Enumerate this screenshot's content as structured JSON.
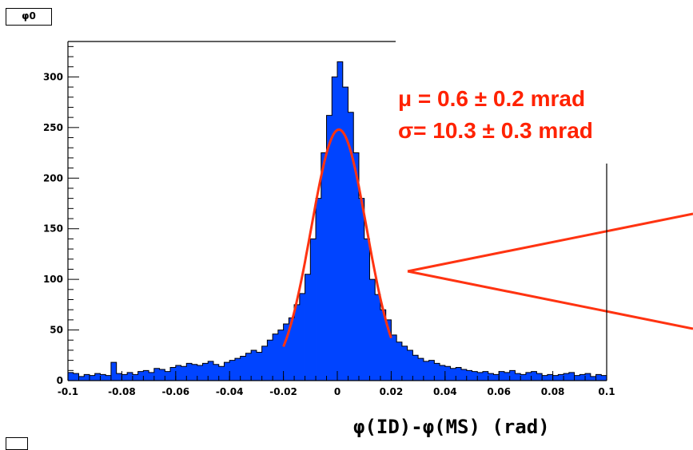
{
  "histogram_title": "φ0",
  "fit": {
    "mean_text": "μ = 0.6 ± 0.2 mrad",
    "sigma_text": "σ= 10.3 ± 0.3 mrad",
    "mean_mrad": 0.6,
    "sigma_mrad": 10.3,
    "amplitude": 248,
    "range": [
      -0.02,
      0.02
    ]
  },
  "colors": {
    "fill": "#0044ff",
    "fit_curve": "#ff3311",
    "fit_text": "#ff2200",
    "zoom_lines": "#ff3311"
  },
  "chart_data": {
    "type": "bar",
    "title": "φ0",
    "xlabel": "φ(ID)-φ(MS) (rad)",
    "ylabel": "",
    "xlim": [
      -0.1,
      0.1
    ],
    "ylim": [
      0,
      335
    ],
    "x_ticks": [
      "-0.1",
      "-0.08",
      "-0.06",
      "-0.04",
      "-0.02",
      "0",
      "0.02",
      "0.04",
      "0.06",
      "0.08",
      "0.1"
    ],
    "y_ticks": [
      "0",
      "50",
      "100",
      "150",
      "200",
      "250",
      "300"
    ],
    "bin_width": 0.002,
    "bin_lows": [
      -0.1,
      -0.098,
      -0.096,
      -0.094,
      -0.092,
      -0.09,
      -0.088,
      -0.086,
      -0.084,
      -0.082,
      -0.08,
      -0.078,
      -0.076,
      -0.074,
      -0.072,
      -0.07,
      -0.068,
      -0.066,
      -0.064,
      -0.062,
      -0.06,
      -0.058,
      -0.056,
      -0.054,
      -0.052,
      -0.05,
      -0.048,
      -0.046,
      -0.044,
      -0.042,
      -0.04,
      -0.038,
      -0.036,
      -0.034,
      -0.032,
      -0.03,
      -0.028,
      -0.026,
      -0.024,
      -0.022,
      -0.02,
      -0.018,
      -0.016,
      -0.014,
      -0.012,
      -0.01,
      -0.008,
      -0.006,
      -0.004,
      -0.002,
      0,
      0.002,
      0.004,
      0.006,
      0.008,
      0.01,
      0.012,
      0.014,
      0.016,
      0.018,
      0.02,
      0.022,
      0.024,
      0.026,
      0.028,
      0.03,
      0.032,
      0.034,
      0.036,
      0.038,
      0.04,
      0.042,
      0.044,
      0.046,
      0.048,
      0.05,
      0.052,
      0.054,
      0.056,
      0.058,
      0.06,
      0.062,
      0.064,
      0.066,
      0.068,
      0.07,
      0.072,
      0.074,
      0.076,
      0.078,
      0.08,
      0.082,
      0.084,
      0.086,
      0.088,
      0.09,
      0.092,
      0.094,
      0.096,
      0.098
    ],
    "values": [
      8,
      7,
      4,
      6,
      5,
      7,
      6,
      5,
      18,
      7,
      6,
      8,
      6,
      9,
      10,
      8,
      12,
      11,
      9,
      13,
      15,
      14,
      17,
      16,
      15,
      17,
      19,
      16,
      14,
      18,
      20,
      22,
      24,
      27,
      30,
      28,
      34,
      40,
      46,
      50,
      56,
      62,
      75,
      86,
      105,
      140,
      180,
      225,
      262,
      300,
      315,
      290,
      265,
      225,
      180,
      140,
      100,
      85,
      70,
      60,
      45,
      38,
      34,
      30,
      25,
      22,
      19,
      20,
      17,
      15,
      14,
      12,
      13,
      11,
      10,
      9,
      8,
      9,
      7,
      6,
      9,
      8,
      10,
      7,
      6,
      8,
      9,
      7,
      5,
      6,
      5,
      6,
      7,
      8,
      5,
      6,
      7,
      4,
      6,
      5
    ]
  }
}
